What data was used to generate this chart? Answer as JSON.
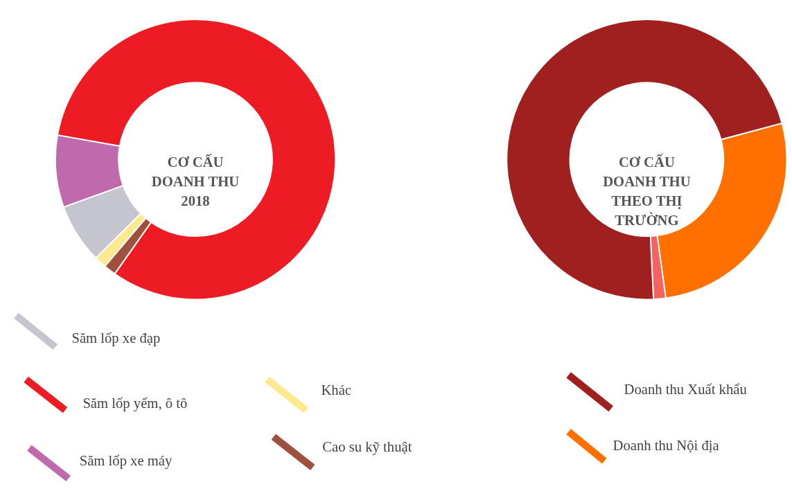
{
  "chart_data": [
    {
      "type": "donut",
      "title": "CƠ CẤU\nDOANH THU\n2018",
      "categories": [
        "Săm lốp yếm, ô tô",
        "Cao su kỹ thuật",
        "Khác",
        "Săm lốp xe đạp",
        "Săm lốp xe máy"
      ],
      "values": [
        82.0,
        1.4,
        1.4,
        6.9,
        8.3
      ],
      "colors": [
        "#ed1c24",
        "#a0503f",
        "#fde98e",
        "#c5c5cf",
        "#c06aae"
      ],
      "legend": "bottom"
    },
    {
      "type": "donut",
      "title": "CƠ CẤU\nDOANH THU\nTHEO THỊ\nTRƯỜNG",
      "categories": [
        "Doanh thu Nội địa",
        null,
        "Doanh thu Xuất khẩu"
      ],
      "values": [
        27.0,
        1.4,
        71.6
      ],
      "colors": [
        "#ff7000",
        "#f56262",
        "#a02020"
      ],
      "legend": "bottom"
    }
  ]
}
